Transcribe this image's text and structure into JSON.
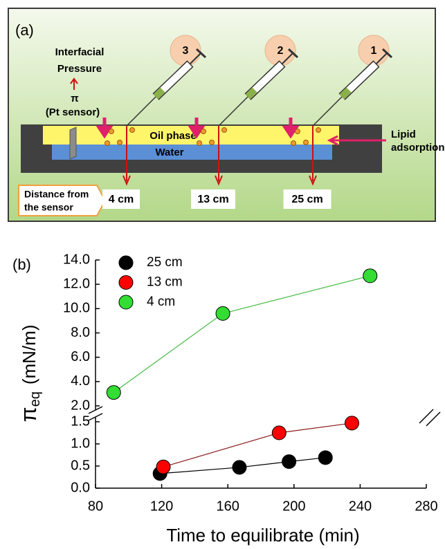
{
  "panel_a": {
    "label": "(a)",
    "interfacial_pressure": [
      "Interfacial",
      "Pressure"
    ],
    "pi": "π",
    "sensor": "(Pt sensor)",
    "oil": "Oil phase",
    "water": "Water",
    "lipid": [
      "Lipid",
      "adsorption"
    ],
    "distance": [
      "Distance from",
      "the sensor"
    ],
    "injections": [
      {
        "number": 3,
        "distance": "4 cm"
      },
      {
        "number": 2,
        "distance": "13 cm"
      },
      {
        "number": 1,
        "distance": "25 cm"
      }
    ]
  },
  "chart_data": {
    "type": "scatter",
    "panel_label": "(b)",
    "x_label": "Time to equilibrate (min)",
    "y_label": {
      "symbol": "π",
      "subscript": "eq",
      "unit": "(mN/m)"
    },
    "xlim": [
      80,
      280
    ],
    "xticks": [
      80,
      120,
      160,
      200,
      240,
      280
    ],
    "ylim": [
      0,
      14
    ],
    "y_break": [
      1.5,
      2.0
    ],
    "yticks": [
      {
        "value": 0,
        "label": "0.0"
      },
      0.5,
      {
        "value": 1,
        "label": "1.0"
      },
      1.5,
      {
        "value": 2,
        "label": "2.0"
      },
      {
        "value": 4,
        "label": "4.0"
      },
      {
        "value": 6,
        "label": "6.0"
      },
      {
        "value": 8,
        "label": "8.0"
      },
      {
        "value": 10,
        "label": "10.0"
      },
      {
        "value": 12,
        "label": "12.0"
      },
      {
        "value": 14,
        "label": "14.0"
      }
    ],
    "legend": "top-left",
    "series": [
      {
        "name": "25 cm",
        "color": "#000000",
        "line_color": "#000000",
        "x": [
          119,
          167,
          197,
          219
        ],
        "values": [
          0.33,
          0.47,
          0.6,
          0.69
        ]
      },
      {
        "name": "13 cm",
        "color": "#ff0000",
        "line_color": "#8b1a1a",
        "x": [
          121,
          191,
          235
        ],
        "values": [
          0.48,
          1.25,
          1.47
        ]
      },
      {
        "name": "4 cm",
        "color": "#33dd33",
        "line_color": "#44bb44",
        "x": [
          91,
          157,
          246
        ],
        "values": [
          3.1,
          9.6,
          12.7
        ]
      }
    ]
  }
}
